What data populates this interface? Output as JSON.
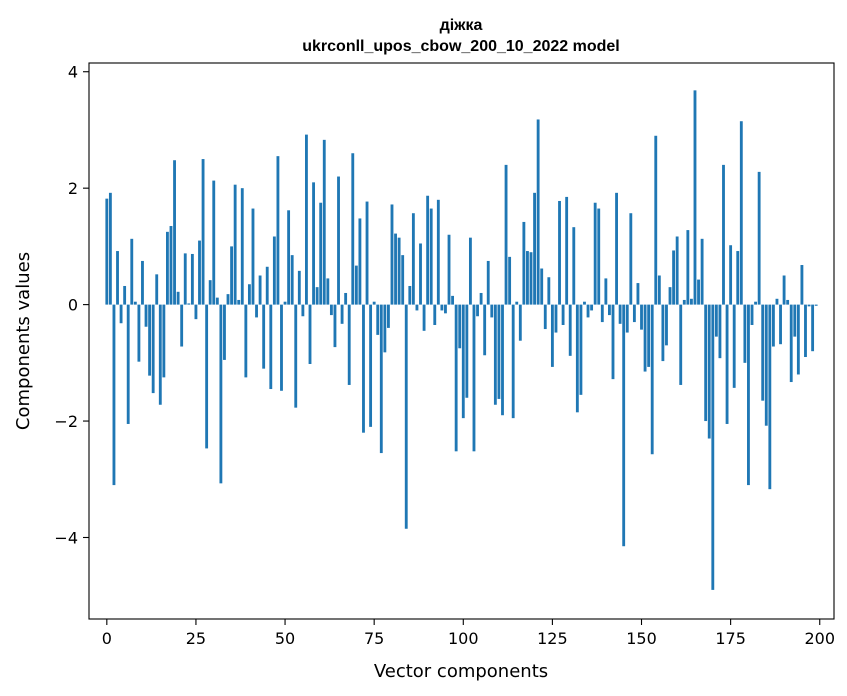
{
  "chart_data": {
    "type": "bar",
    "title": "діжка",
    "subtitle": "ukrconll_upos_cbow_200_10_2022 model",
    "xlabel": "Vector components",
    "ylabel": "Components values",
    "xlim": [
      -5,
      204
    ],
    "ylim": [
      -5.4,
      4.15
    ],
    "xticks": [
      0,
      25,
      50,
      75,
      100,
      125,
      150,
      175,
      200
    ],
    "yticks": [
      -4,
      -2,
      0,
      2,
      4
    ],
    "grid": false,
    "legend": "none",
    "bar_color": "#1f77b4",
    "values": [
      1.82,
      1.92,
      -3.1,
      0.92,
      -0.32,
      0.32,
      -2.05,
      1.13,
      0.05,
      -0.98,
      0.75,
      -0.38,
      -1.22,
      -1.52,
      0.52,
      -1.72,
      -1.25,
      1.25,
      1.35,
      2.48,
      0.22,
      -0.72,
      0.88,
      0.02,
      0.87,
      -0.25,
      1.1,
      2.5,
      -2.47,
      0.42,
      2.13,
      0.12,
      -3.07,
      -0.95,
      0.18,
      1.0,
      2.06,
      0.08,
      2.0,
      -1.25,
      0.35,
      1.65,
      -0.22,
      0.5,
      -1.1,
      0.65,
      -1.45,
      1.17,
      2.55,
      -1.48,
      0.05,
      1.62,
      0.85,
      -1.77,
      0.58,
      -0.2,
      2.92,
      -1.02,
      2.1,
      0.3,
      1.75,
      2.83,
      0.45,
      -0.18,
      -0.73,
      2.2,
      -0.33,
      0.2,
      -1.38,
      2.6,
      0.67,
      1.48,
      -2.2,
      1.77,
      -2.1,
      0.05,
      -0.52,
      -2.55,
      -0.82,
      -0.4,
      1.72,
      1.22,
      1.15,
      0.85,
      -3.85,
      0.32,
      1.57,
      -0.1,
      1.05,
      -0.45,
      1.87,
      1.65,
      -0.35,
      1.8,
      -0.1,
      -0.15,
      1.2,
      0.15,
      -2.52,
      -0.75,
      -1.95,
      -1.6,
      1.15,
      -2.52,
      -0.2,
      0.2,
      -0.87,
      0.75,
      -0.22,
      -1.72,
      -1.62,
      -1.9,
      2.4,
      0.82,
      -1.95,
      0.05,
      -0.62,
      1.42,
      0.92,
      0.9,
      1.92,
      3.18,
      0.62,
      -0.42,
      0.47,
      -1.07,
      -0.48,
      1.78,
      -0.35,
      1.85,
      -0.88,
      1.33,
      -1.85,
      -1.55,
      0.05,
      -0.22,
      -0.1,
      1.75,
      1.65,
      -0.3,
      0.45,
      -0.18,
      -1.28,
      1.92,
      -0.33,
      -4.15,
      -0.48,
      1.57,
      -0.3,
      0.37,
      -0.43,
      -1.15,
      -1.07,
      -2.57,
      2.9,
      0.5,
      -0.97,
      -0.7,
      0.3,
      0.93,
      1.17,
      -1.38,
      0.08,
      1.28,
      0.1,
      3.68,
      0.43,
      1.13,
      -2.0,
      -2.3,
      -4.9,
      -0.55,
      -0.92,
      2.4,
      -2.05,
      1.02,
      -1.43,
      0.92,
      3.15,
      -1.0,
      -3.1,
      -0.35,
      0.05,
      2.28,
      -1.65,
      -2.08,
      -3.17,
      -0.72,
      0.1,
      -0.68,
      0.5,
      0.08,
      -1.33,
      -0.55,
      -1.2,
      0.68,
      -0.9,
      -0.03,
      -0.8,
      -0.02
    ]
  }
}
